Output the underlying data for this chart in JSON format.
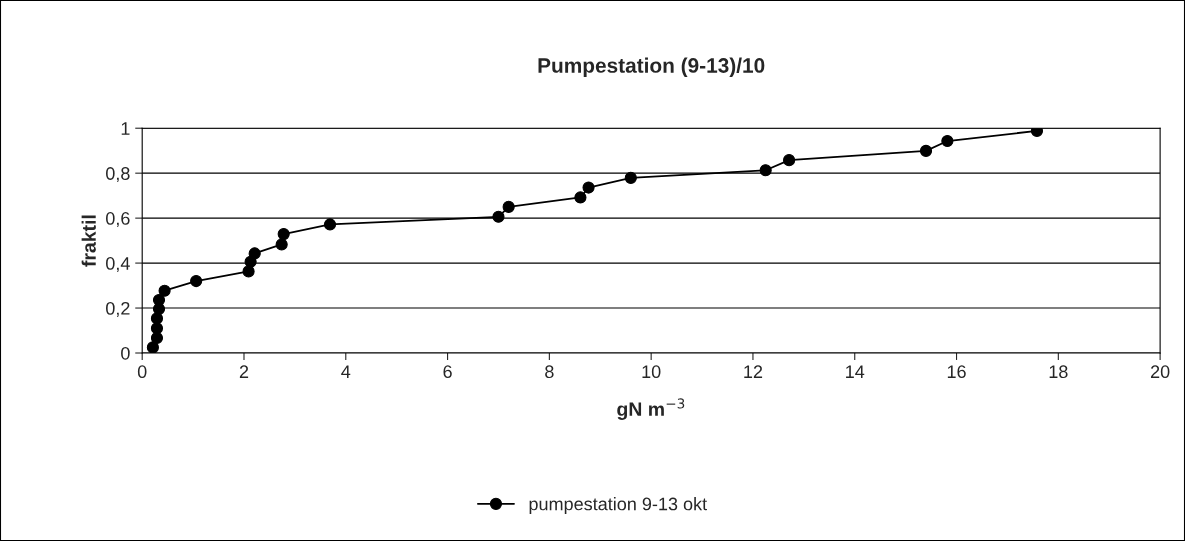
{
  "chart_data": {
    "type": "line",
    "title": "Pumpestation (9-13)/10",
    "xlabel": "gN m$^{−3}$",
    "ylabel": "fraktil",
    "x": [
      0.21,
      0.29,
      0.29,
      0.29,
      0.33,
      0.33,
      0.44,
      1.06,
      2.09,
      2.13,
      2.21,
      2.74,
      2.78,
      3.69,
      7.0,
      7.2,
      8.61,
      8.77,
      9.6,
      12.25,
      12.71,
      15.4,
      15.82,
      17.58
    ],
    "series": [
      {
        "name": "pumpestation 9-13 okt",
        "color": "#000000",
        "values": [
          0.025,
          0.067,
          0.11,
          0.154,
          0.196,
          0.236,
          0.277,
          0.32,
          0.363,
          0.406,
          0.443,
          0.483,
          0.529,
          0.572,
          0.606,
          0.65,
          0.692,
          0.736,
          0.779,
          0.813,
          0.858,
          0.899,
          0.943,
          0.988
        ]
      }
    ],
    "xlim": [
      0,
      20
    ],
    "xticks": [
      0,
      2,
      4,
      6,
      8,
      10,
      12,
      14,
      16,
      18,
      20
    ],
    "ylim": [
      0,
      1
    ],
    "yticks": [
      0,
      {
        "value": 0.2,
        "label": "0,2"
      },
      {
        "value": 0.4,
        "label": "0,4"
      },
      {
        "value": 0.6,
        "label": "0,6"
      },
      {
        "value": 0.8,
        "label": "0,8"
      },
      1
    ],
    "grid": "y",
    "legend": "bottom",
    "marker": "circle",
    "line_style": "solid"
  }
}
